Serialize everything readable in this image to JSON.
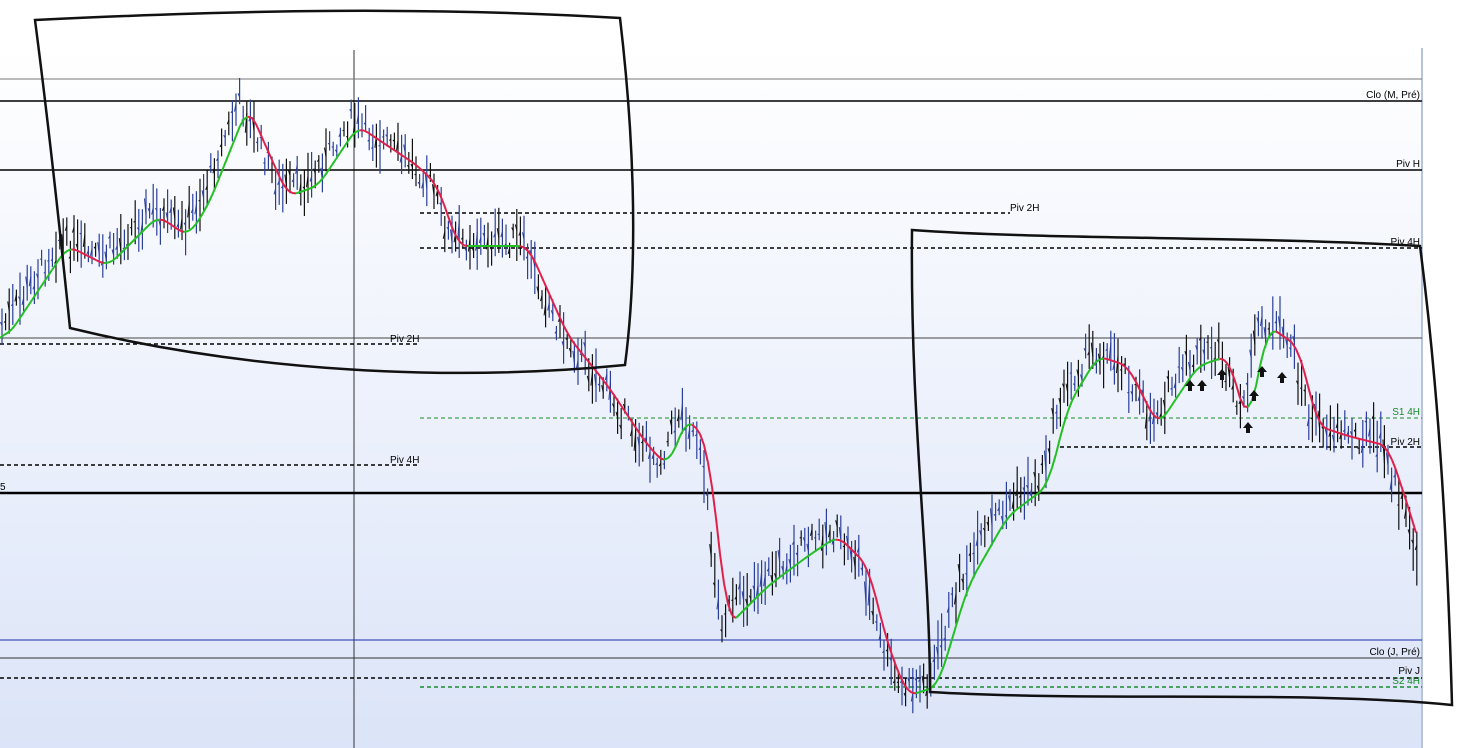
{
  "levels": [
    {
      "label": "Clo (M, Pré)"
    },
    {
      "label": "Piv H"
    },
    {
      "label": "Piv 2H"
    },
    {
      "label": "Piv 4H"
    },
    {
      "label": "Piv 2H"
    },
    {
      "label": "S1 4H"
    },
    {
      "label": "Piv 2H"
    },
    {
      "label": "Piv 4H"
    },
    {
      "label": "5"
    },
    {
      "label": "Clo (J, Pré)"
    },
    {
      "label": "Piv J"
    },
    {
      "label": "S2 4H"
    }
  ]
}
